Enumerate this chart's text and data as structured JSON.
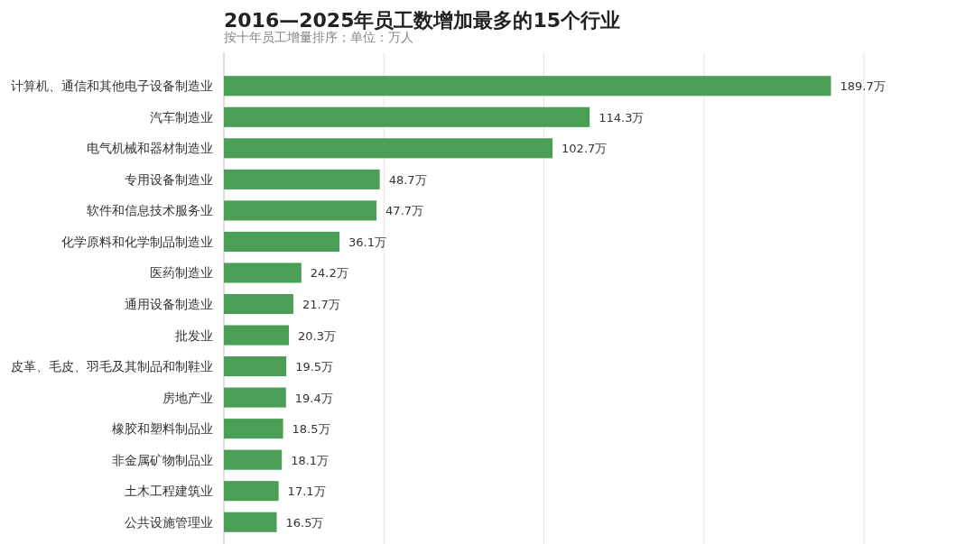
{
  "chart_data": {
    "type": "bar",
    "orientation": "horizontal",
    "title": "2016—2025年员工数增加最多的15个行业",
    "subtitle": "按十年员工增量排序；单位：万人",
    "categories": [
      "计算机、通信和其他电子设备制造业",
      "汽车制造业",
      "电气机械和器材制造业",
      "专用设备制造业",
      "软件和信息技术服务业",
      "化学原料和化学制品制造业",
      "医药制造业",
      "通用设备制造业",
      "批发业",
      "皮革、毛皮、羽毛及其制品和制鞋业",
      "房地产业",
      "橡胶和塑料制品业",
      "非金属矿物制品业",
      "土木工程建筑业",
      "公共设施管理业"
    ],
    "values": [
      189.7,
      114.3,
      102.7,
      48.7,
      47.7,
      36.1,
      24.2,
      21.7,
      20.3,
      19.5,
      19.4,
      18.5,
      18.1,
      17.1,
      16.5
    ],
    "value_labels": [
      "189.7万",
      "114.3万",
      "102.7万",
      "48.7万",
      "47.7万",
      "36.1万",
      "24.2万",
      "21.7万",
      "20.3万",
      "19.5万",
      "19.4万",
      "18.5万",
      "18.1万",
      "17.1万",
      "16.5万"
    ],
    "color": "#4a9e55",
    "xlim": [
      0,
      200
    ],
    "xticks": [
      {
        "value": 0,
        "label": null
      },
      {
        "value": 50,
        "label": null
      },
      {
        "value": 100,
        "label": null
      },
      {
        "value": 150,
        "label": null
      },
      {
        "value": 200,
        "label": null
      }
    ],
    "grid": "x",
    "tick_labels": "y"
  }
}
